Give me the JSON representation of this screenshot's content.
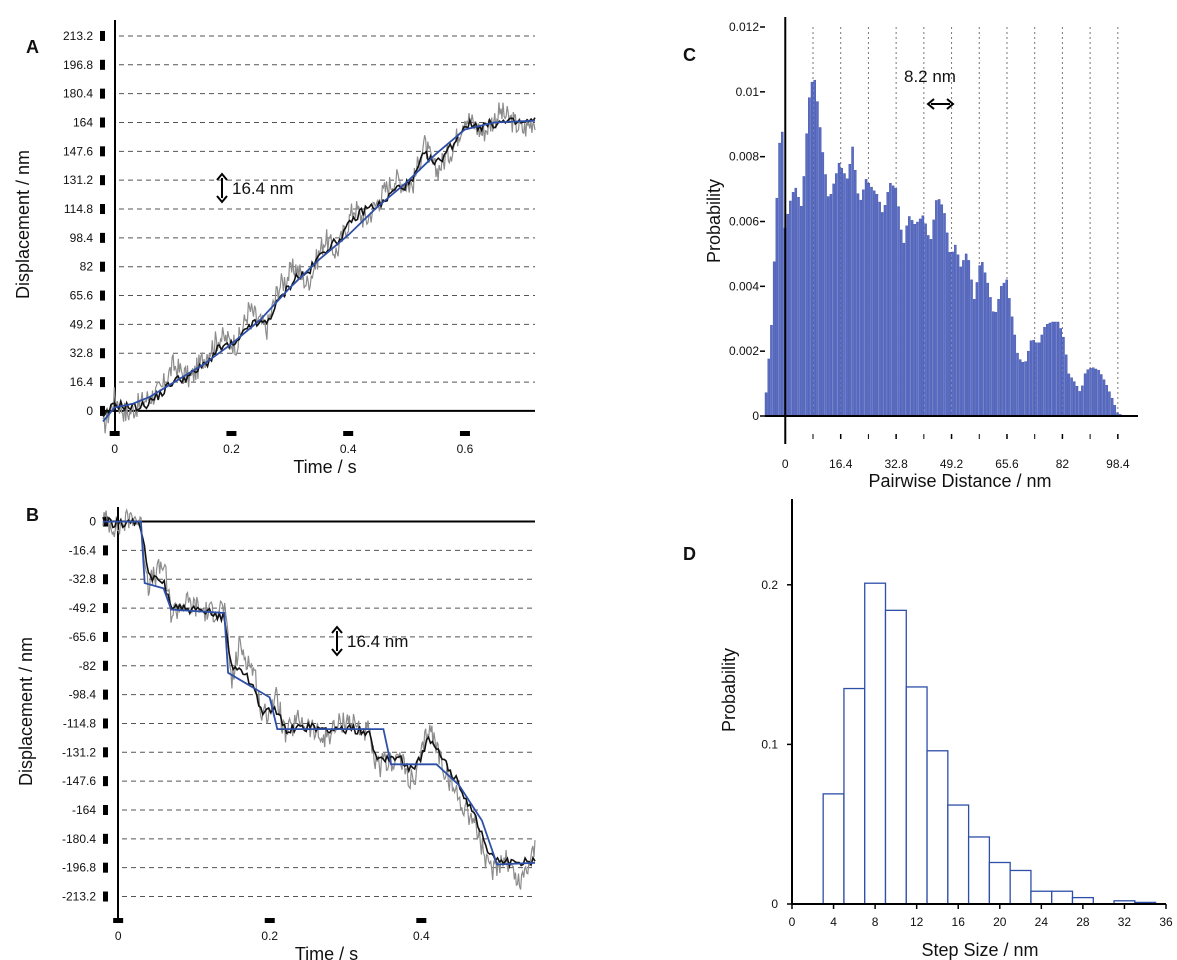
{
  "chart_data": [
    {
      "panel": "A",
      "type": "line",
      "xlabel": "Time / s",
      "ylabel": "Displacement / nm",
      "xlim": [
        -0.02,
        0.72
      ],
      "ylim": [
        -8,
        220
      ],
      "xticks": [
        0,
        0.2,
        0.4,
        0.6
      ],
      "xtick_labels": [
        "0",
        "0.2",
        "0.4",
        "0.6"
      ],
      "yticks": [
        0,
        16.4,
        32.8,
        49.2,
        65.6,
        82,
        98.4,
        114.8,
        131.2,
        147.6,
        164,
        180.4,
        196.8,
        213.2
      ],
      "ytick_labels": [
        "0",
        "16.4",
        "32.8",
        "49.2",
        "65.6",
        "82",
        "98.4",
        "114.8",
        "131.2",
        "147.6",
        "164",
        "180.4",
        "196.8",
        "213.2"
      ],
      "grid": "dashed horizontal at every 16.4 nm",
      "annotation": "16.4 nm",
      "series": [
        {
          "role": "raw",
          "color": "#8c8c8c",
          "x": [
            -0.02,
            0.0,
            0.02,
            0.05,
            0.08,
            0.1,
            0.13,
            0.16,
            0.18,
            0.21,
            0.23,
            0.26,
            0.28,
            0.31,
            0.33,
            0.36,
            0.38,
            0.41,
            0.43,
            0.46,
            0.48,
            0.51,
            0.53,
            0.55,
            0.58,
            0.6,
            0.63,
            0.66,
            0.7,
            0.72
          ],
          "y": [
            -10,
            8,
            -2,
            6,
            12,
            26,
            18,
            34,
            42,
            38,
            58,
            46,
            70,
            82,
            72,
            98,
            90,
            116,
            108,
            124,
            132,
            128,
            152,
            136,
            150,
            168,
            158,
            170,
            160,
            166
          ]
        },
        {
          "role": "filtered",
          "color": "#111111",
          "x": [
            -0.02,
            0.0,
            0.03,
            0.05,
            0.08,
            0.1,
            0.13,
            0.16,
            0.18,
            0.21,
            0.23,
            0.26,
            0.28,
            0.31,
            0.33,
            0.36,
            0.38,
            0.41,
            0.43,
            0.46,
            0.48,
            0.51,
            0.53,
            0.55,
            0.58,
            0.6,
            0.63,
            0.66,
            0.7,
            0.72
          ],
          "y": [
            -5,
            4,
            2,
            3,
            10,
            17,
            20,
            28,
            36,
            38,
            49,
            50,
            62,
            76,
            78,
            92,
            96,
            109,
            115,
            118,
            126,
            130,
            146,
            140,
            152,
            163,
            162,
            164,
            164,
            165
          ]
        },
        {
          "role": "fit",
          "color": "#2e4fa8",
          "x": [
            -0.02,
            0.0,
            0.03,
            0.06,
            0.1,
            0.15,
            0.2,
            0.25,
            0.3,
            0.35,
            0.4,
            0.45,
            0.5,
            0.55,
            0.6,
            0.65,
            0.72
          ],
          "y": [
            -6,
            2,
            4,
            8,
            16,
            26,
            38,
            52,
            70,
            86,
            100,
            116,
            130,
            146,
            160,
            164,
            165
          ]
        }
      ]
    },
    {
      "panel": "B",
      "type": "line",
      "xlabel": "Time / s",
      "ylabel": "Displacement / nm",
      "xlim": [
        -0.02,
        0.55
      ],
      "ylim": [
        -222,
        6
      ],
      "xticks": [
        0,
        0.2,
        0.4
      ],
      "xtick_labels": [
        "0",
        "0.2",
        "0.4"
      ],
      "yticks": [
        0,
        -16.4,
        -32.8,
        -49.2,
        -65.6,
        -82,
        -98.4,
        -114.8,
        -131.2,
        -147.6,
        -164,
        -180.4,
        -196.8,
        -213.2
      ],
      "ytick_labels": [
        "0",
        "-16.4",
        "-32.8",
        "-49.2",
        "-65.6",
        "-82",
        "-98.4",
        "-114.8",
        "-131.2",
        "-147.6",
        "-164",
        "-180.4",
        "-196.8",
        "-213.2"
      ],
      "grid": "dashed horizontal at every 16.4 nm",
      "annotation": "16.4 nm",
      "series": [
        {
          "role": "raw",
          "color": "#8c8c8c",
          "x": [
            -0.02,
            0.0,
            0.02,
            0.03,
            0.04,
            0.06,
            0.07,
            0.09,
            0.12,
            0.14,
            0.15,
            0.16,
            0.18,
            0.19,
            0.21,
            0.22,
            0.24,
            0.27,
            0.3,
            0.33,
            0.34,
            0.37,
            0.39,
            0.41,
            0.43,
            0.45,
            0.47,
            0.49,
            0.51,
            0.53,
            0.55
          ],
          "y": [
            2,
            -4,
            4,
            -2,
            -36,
            -24,
            -52,
            -46,
            -52,
            -48,
            -92,
            -70,
            -86,
            -112,
            -100,
            -122,
            -112,
            -124,
            -112,
            -120,
            -140,
            -134,
            -150,
            -116,
            -140,
            -158,
            -170,
            -200,
            -190,
            -206,
            -184
          ]
        },
        {
          "role": "filtered",
          "color": "#111111",
          "x": [
            -0.02,
            0.0,
            0.02,
            0.03,
            0.04,
            0.06,
            0.07,
            0.09,
            0.12,
            0.14,
            0.15,
            0.16,
            0.18,
            0.19,
            0.21,
            0.22,
            0.24,
            0.27,
            0.3,
            0.33,
            0.34,
            0.37,
            0.39,
            0.41,
            0.43,
            0.45,
            0.47,
            0.49,
            0.51,
            0.53,
            0.55
          ],
          "y": [
            0,
            -1,
            0,
            -2,
            -32,
            -34,
            -48,
            -50,
            -52,
            -54,
            -84,
            -82,
            -95,
            -108,
            -108,
            -118,
            -117,
            -118,
            -118,
            -119,
            -134,
            -134,
            -142,
            -124,
            -136,
            -150,
            -166,
            -190,
            -193,
            -195,
            -192
          ]
        },
        {
          "role": "fit",
          "color": "#2e4fa8",
          "x": [
            -0.02,
            0.03,
            0.035,
            0.06,
            0.07,
            0.14,
            0.145,
            0.2,
            0.21,
            0.35,
            0.36,
            0.42,
            0.45,
            0.48,
            0.5,
            0.55
          ],
          "y": [
            0,
            0,
            -35,
            -38,
            -50,
            -52,
            -86,
            -100,
            -118,
            -118,
            -138,
            -138,
            -150,
            -170,
            -195,
            -194
          ]
        }
      ]
    },
    {
      "panel": "C",
      "type": "bar",
      "xlabel": "Pairwise Distance / nm",
      "ylabel": "Probability",
      "xlim": [
        -6,
        102
      ],
      "ylim": [
        0,
        0.012
      ],
      "xticks": [
        0,
        16.4,
        32.8,
        49.2,
        65.6,
        82,
        98.4
      ],
      "xtick_labels": [
        "0",
        "16.4",
        "32.8",
        "49.2",
        "65.6",
        "82",
        "98.4"
      ],
      "yticks": [
        0,
        0.002,
        0.004,
        0.006,
        0.008,
        0.01,
        0.012
      ],
      "ytick_labels": [
        "0",
        "0.002",
        "0.004",
        "0.006",
        "0.008",
        "0.01",
        "0.012"
      ],
      "grid": "dotted vertical lines every 8.2 nm",
      "annotation": "8.2 nm",
      "bin_width": 0.8,
      "color": "#5a6cc4",
      "profile": {
        "x": [
          -6,
          -4,
          -2,
          -1,
          0,
          1.5,
          3,
          5,
          7,
          8.5,
          9.5,
          11,
          13,
          16,
          18.5,
          20,
          22,
          24,
          26,
          27.5,
          29,
          31,
          33,
          35,
          36.5,
          38.5,
          41,
          43,
          45,
          47,
          49,
          50.5,
          52,
          54,
          56,
          58,
          60,
          62,
          64,
          65.6,
          67,
          69,
          71,
          73,
          75,
          77,
          79,
          81,
          82.5,
          84,
          86,
          87.5,
          89,
          91,
          93,
          95,
          97,
          98.4,
          100
        ],
        "y": [
          0.0002,
          0.0028,
          0.0077,
          0.0095,
          0.0058,
          0.0066,
          0.0071,
          0.0064,
          0.0097,
          0.0106,
          0.0098,
          0.0083,
          0.0066,
          0.0078,
          0.0073,
          0.0083,
          0.0065,
          0.0073,
          0.007,
          0.0068,
          0.0062,
          0.0072,
          0.007,
          0.0052,
          0.0062,
          0.0059,
          0.0062,
          0.0053,
          0.0068,
          0.0064,
          0.0049,
          0.0053,
          0.0046,
          0.0051,
          0.0036,
          0.0049,
          0.0041,
          0.003,
          0.004,
          0.0042,
          0.0032,
          0.0018,
          0.0016,
          0.0024,
          0.0022,
          0.0028,
          0.0029,
          0.0029,
          0.0024,
          0.0013,
          0.001,
          0.0007,
          0.0014,
          0.0015,
          0.0014,
          0.001,
          0.0005,
          0.0001,
          0.0
        ]
      }
    },
    {
      "panel": "D",
      "type": "bar",
      "xlabel": "Step Size / nm",
      "ylabel": "Probability",
      "xlim": [
        0,
        36
      ],
      "ylim": [
        0,
        0.25
      ],
      "xticks": [
        0,
        4,
        8,
        12,
        16,
        20,
        24,
        28,
        32,
        36
      ],
      "xtick_labels": [
        "0",
        "4",
        "8",
        "12",
        "16",
        "20",
        "24",
        "28",
        "32",
        "36"
      ],
      "yticks": [
        0,
        0.1,
        0.2
      ],
      "ytick_labels": [
        "0",
        "0.1",
        "0.2"
      ],
      "color": "#2e4fa8",
      "bin_edges": [
        3,
        5,
        7,
        9,
        11,
        13,
        15,
        17,
        19,
        21,
        23,
        25,
        27,
        29,
        31,
        33,
        35
      ],
      "values": [
        0.069,
        0.135,
        0.201,
        0.184,
        0.136,
        0.096,
        0.062,
        0.042,
        0.026,
        0.021,
        0.008,
        0.008,
        0.004,
        0.0,
        0.002,
        0.001
      ]
    }
  ]
}
